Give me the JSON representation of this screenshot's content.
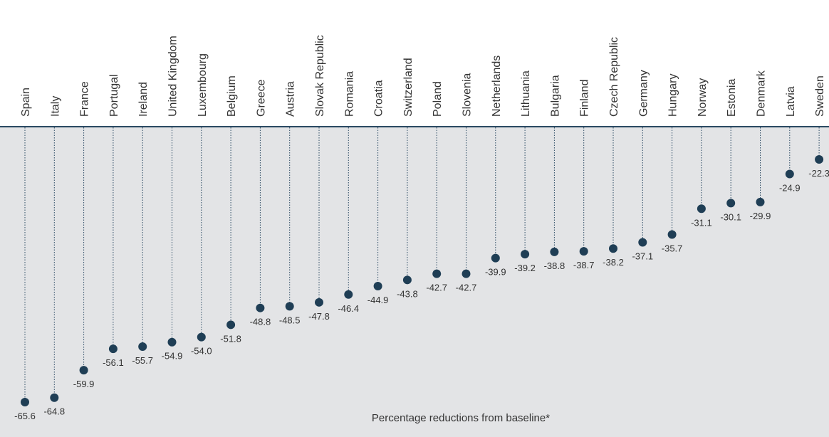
{
  "colors": {
    "plot_background": "#e3e4e6",
    "baseline": "#2b4a63",
    "marker": "#1f3e55",
    "stem": "#2b4a63",
    "text": "#333333"
  },
  "chart_data": {
    "type": "scatter",
    "style": "dot-plot with dotted stems hanging from a top baseline",
    "categories": [
      "Spain",
      "Italy",
      "France",
      "Portugal",
      "Ireland",
      "United Kingdom",
      "Luxembourg",
      "Belgium",
      "Greece",
      "Austria",
      "Slovak Republic",
      "Romania",
      "Croatia",
      "Switzerland",
      "Poland",
      "Slovenia",
      "Netherlands",
      "Lithuania",
      "Bulgaria",
      "Finland",
      "Czech Republic",
      "Germany",
      "Hungary",
      "Norway",
      "Estonia",
      "Denmark",
      "Latvia",
      "Sweden"
    ],
    "values": [
      -65.6,
      -64.8,
      -59.9,
      -56.1,
      -55.7,
      -54.9,
      -54.0,
      -51.8,
      -48.8,
      -48.5,
      -47.8,
      -46.4,
      -44.9,
      -43.8,
      -42.7,
      -42.7,
      -39.9,
      -39.2,
      -38.8,
      -38.7,
      -38.2,
      -37.1,
      -35.7,
      -31.1,
      -30.1,
      -29.9,
      -24.9,
      -22.3
    ],
    "value_labels": [
      "-65.6",
      "-64.8",
      "-59.9",
      "-56.1",
      "-55.7",
      "-54.9",
      "-54.0",
      "-51.8",
      "-48.8",
      "-48.5",
      "-47.8",
      "-46.4",
      "-44.9",
      "-43.8",
      "-42.7",
      "-42.7",
      "-39.9",
      "-39.2",
      "-38.8",
      "-38.7",
      "-38.2",
      "-37.1",
      "-35.7",
      "-31.1",
      "-30.1",
      "-29.9",
      "-24.9",
      "-22.3"
    ],
    "footnote": "Percentage reductions from baseline*",
    "ylim": [
      -70,
      0
    ],
    "grid": false,
    "category_label_orientation": "vertical"
  }
}
